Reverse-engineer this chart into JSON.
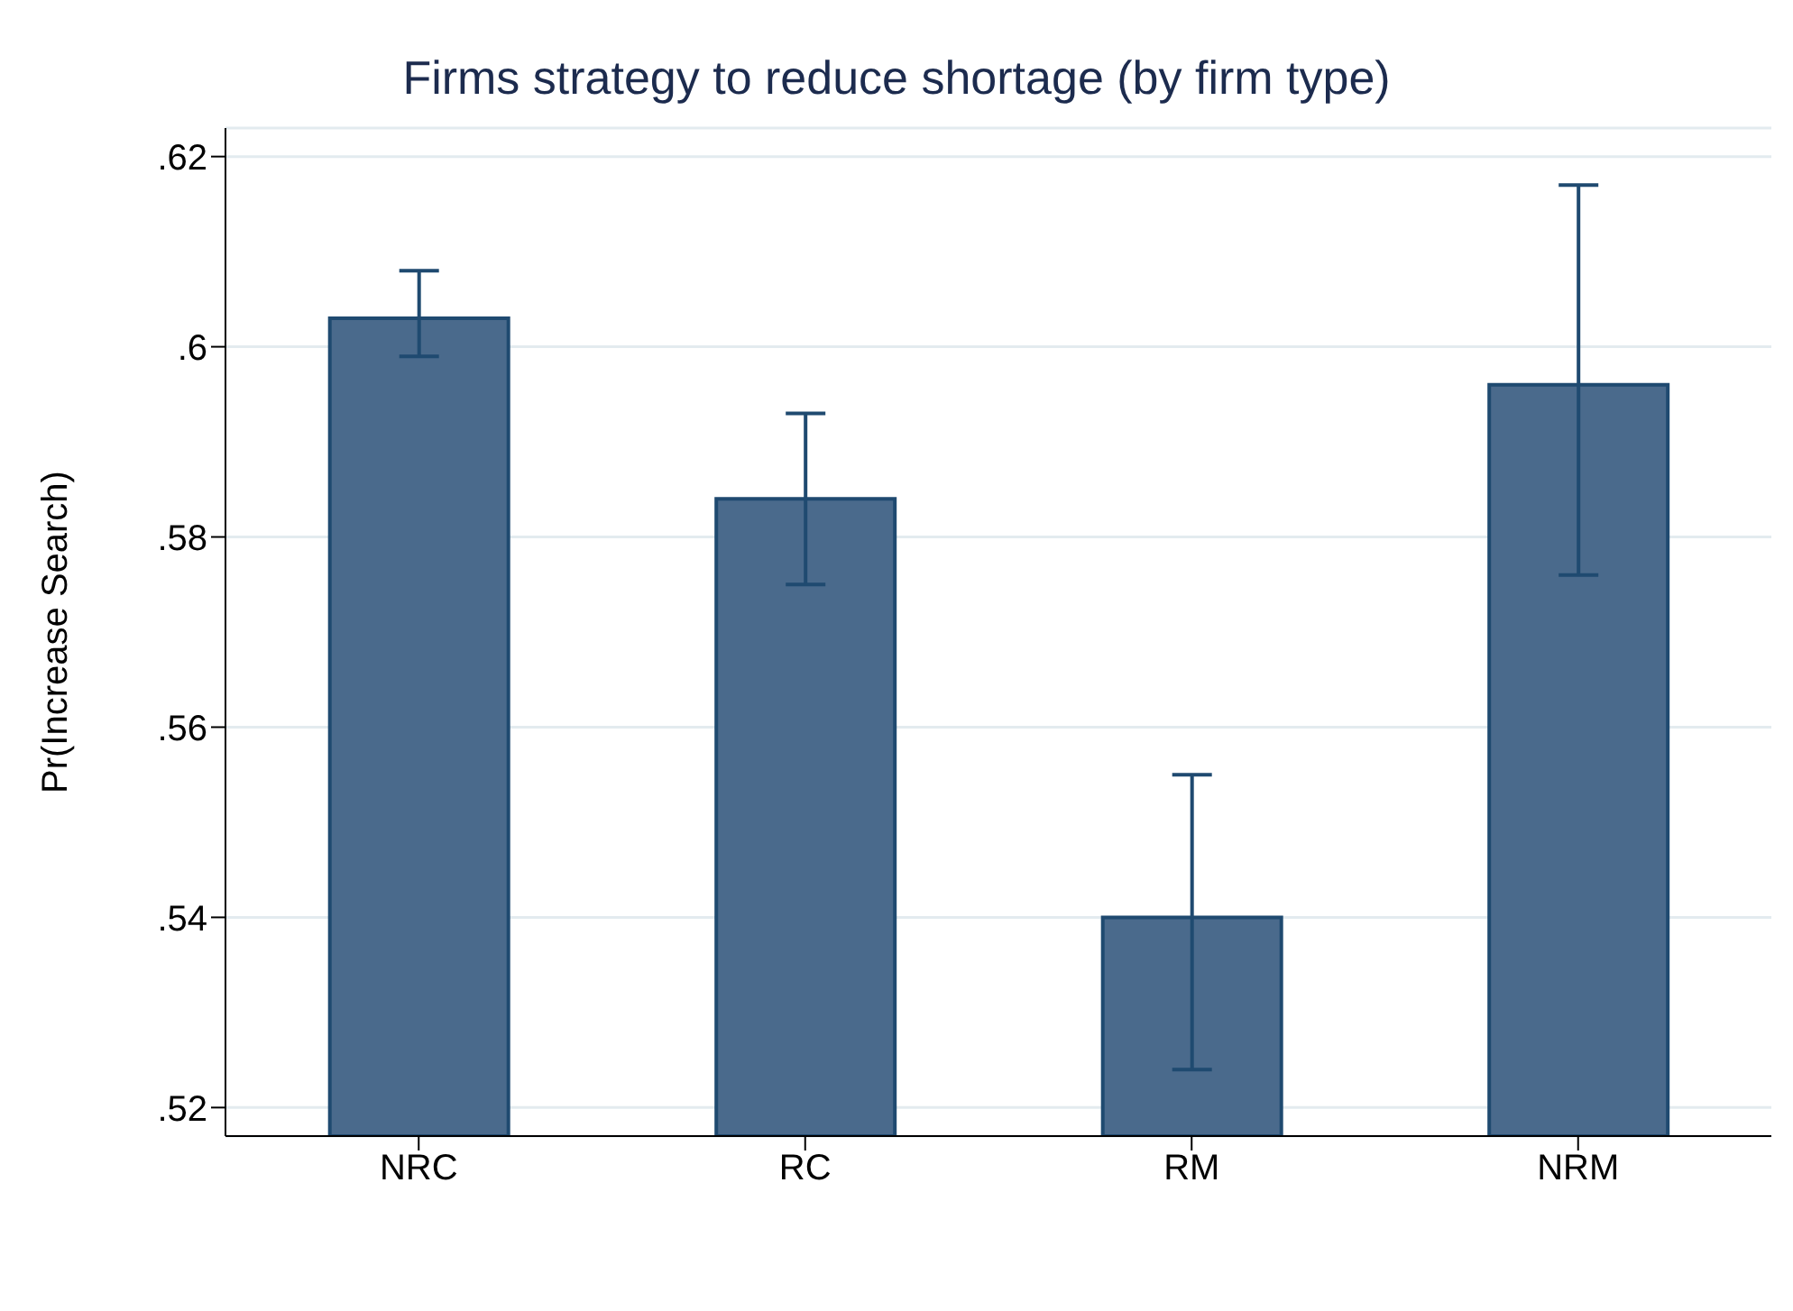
{
  "chart_data": {
    "type": "bar",
    "title": "Firms strategy to reduce shortage (by firm type)",
    "ylabel": "Pr(Increase Search)",
    "categories": [
      "NRC",
      "RC",
      "RM",
      "NRM"
    ],
    "values": [
      0.603,
      0.584,
      0.54,
      0.596
    ],
    "errors": [
      [
        0.599,
        0.608
      ],
      [
        0.575,
        0.593
      ],
      [
        0.524,
        0.555
      ],
      [
        0.576,
        0.617
      ]
    ],
    "color": "#4a6a8c",
    "ylim": [
      0.517,
      0.623
    ],
    "yticks": [
      {
        "value": 0.52,
        "label": ".52"
      },
      {
        "value": 0.54,
        "label": ".54"
      },
      {
        "value": 0.56,
        "label": ".56"
      },
      {
        "value": 0.58,
        "label": ".58"
      },
      {
        "value": 0.6,
        "label": ".6"
      },
      {
        "value": 0.62,
        "label": ".62"
      }
    ],
    "grid": "y"
  }
}
